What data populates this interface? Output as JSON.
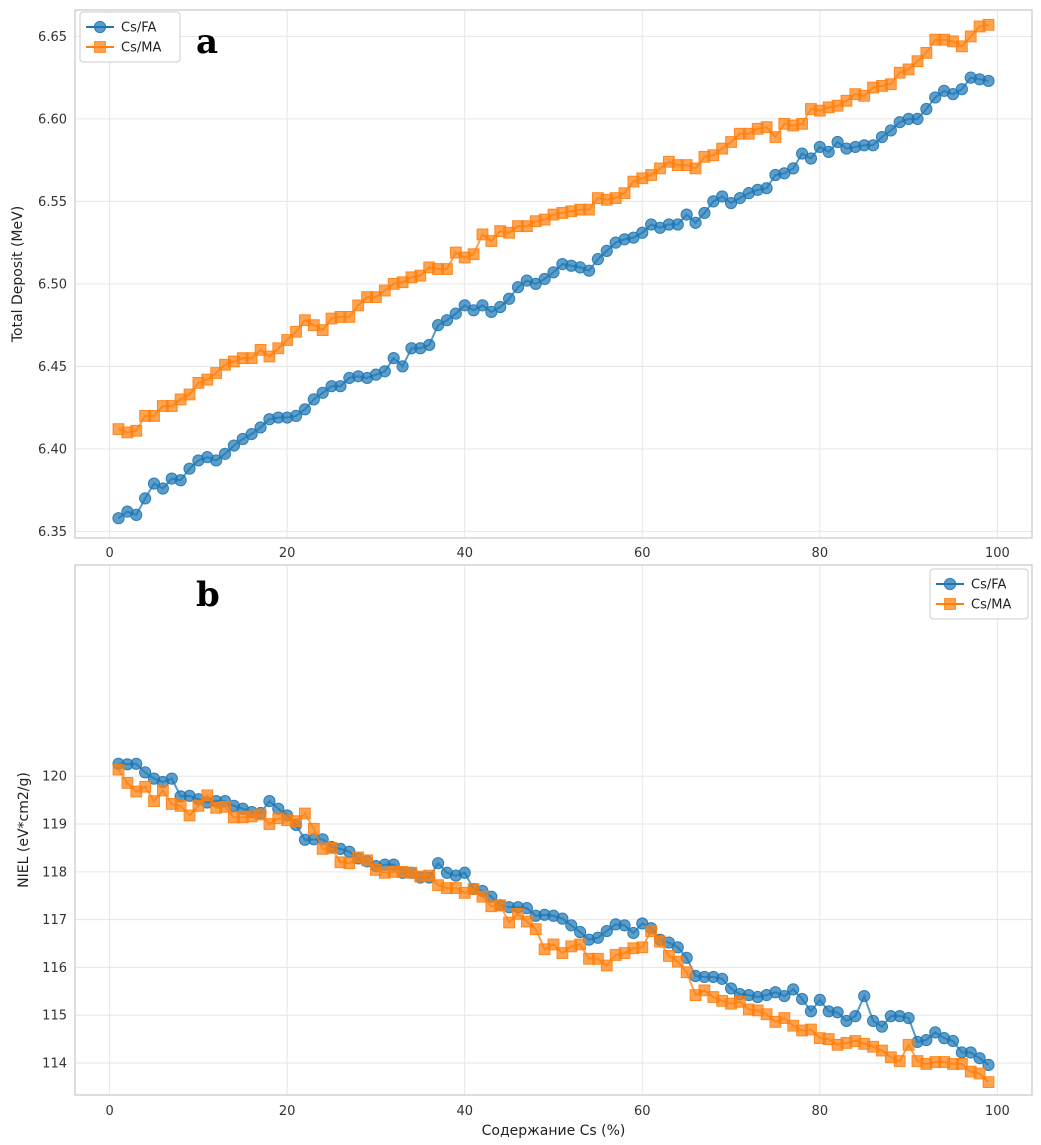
{
  "chart_data": [
    {
      "type": "line",
      "panel_label": "a",
      "title": "",
      "xlabel": "",
      "ylabel": "Total Deposit (MeV)",
      "xlim": [
        -3.9,
        103.9
      ],
      "ylim": [
        6.346,
        6.666
      ],
      "xticks": [
        0,
        20,
        40,
        60,
        80,
        100
      ],
      "yticks": [
        6.35,
        6.4,
        6.45,
        6.5,
        6.55,
        6.6,
        6.65
      ],
      "ytick_labels": [
        "6.35",
        "6.40",
        "6.45",
        "6.50",
        "6.55",
        "6.60",
        "6.65"
      ],
      "grid": true,
      "legend_position": "top-left",
      "x": [
        1,
        2,
        3,
        4,
        5,
        6,
        7,
        8,
        9,
        10,
        11,
        12,
        13,
        14,
        15,
        16,
        17,
        18,
        19,
        20,
        21,
        22,
        23,
        24,
        25,
        26,
        27,
        28,
        29,
        30,
        31,
        32,
        33,
        34,
        35,
        36,
        37,
        38,
        39,
        40,
        41,
        42,
        43,
        44,
        45,
        46,
        47,
        48,
        49,
        50,
        51,
        52,
        53,
        54,
        55,
        56,
        57,
        58,
        59,
        60,
        61,
        62,
        63,
        64,
        65,
        66,
        67,
        68,
        69,
        70,
        71,
        72,
        73,
        74,
        75,
        76,
        77,
        78,
        79,
        80,
        81,
        82,
        83,
        84,
        85,
        86,
        87,
        88,
        89,
        90,
        91,
        92,
        93,
        94,
        95,
        96,
        97,
        98,
        99
      ],
      "series": [
        {
          "name": "Cs/FA",
          "marker": "circle",
          "color": "#1f77b4",
          "values": [
            6.358,
            6.362,
            6.36,
            6.37,
            6.379,
            6.376,
            6.382,
            6.381,
            6.388,
            6.393,
            6.395,
            6.393,
            6.397,
            6.402,
            6.406,
            6.409,
            6.413,
            6.418,
            6.419,
            6.419,
            6.42,
            6.424,
            6.43,
            6.434,
            6.438,
            6.438,
            6.443,
            6.444,
            6.443,
            6.445,
            6.447,
            6.455,
            6.45,
            6.461,
            6.461,
            6.463,
            6.475,
            6.478,
            6.482,
            6.487,
            6.484,
            6.487,
            6.483,
            6.486,
            6.491,
            6.498,
            6.502,
            6.5,
            6.503,
            6.507,
            6.512,
            6.511,
            6.51,
            6.508,
            6.515,
            6.52,
            6.525,
            6.527,
            6.528,
            6.531,
            6.536,
            6.534,
            6.536,
            6.536,
            6.542,
            6.537,
            6.543,
            6.55,
            6.553,
            6.549,
            6.552,
            6.555,
            6.557,
            6.558,
            6.566,
            6.567,
            6.57,
            6.579,
            6.576,
            6.583,
            6.58,
            6.586,
            6.582,
            6.583,
            6.584,
            6.584,
            6.589,
            6.593,
            6.598,
            6.6,
            6.6,
            6.606,
            6.613,
            6.617,
            6.615,
            6.618,
            6.625,
            6.624,
            6.623
          ]
        },
        {
          "name": "Cs/MA",
          "marker": "square",
          "color": "#ff7f0e",
          "values": [
            6.412,
            6.41,
            6.411,
            6.42,
            6.42,
            6.426,
            6.426,
            6.43,
            6.433,
            6.44,
            6.442,
            6.446,
            6.451,
            6.453,
            6.455,
            6.455,
            6.46,
            6.456,
            6.461,
            6.466,
            6.471,
            6.478,
            6.475,
            6.472,
            6.479,
            6.48,
            6.48,
            6.487,
            6.492,
            6.492,
            6.496,
            6.5,
            6.501,
            6.504,
            6.505,
            6.51,
            6.509,
            6.509,
            6.519,
            6.516,
            6.518,
            6.53,
            6.526,
            6.532,
            6.531,
            6.535,
            6.535,
            6.538,
            6.539,
            6.542,
            6.543,
            6.544,
            6.545,
            6.545,
            6.552,
            6.551,
            6.552,
            6.555,
            6.562,
            6.564,
            6.566,
            6.57,
            6.574,
            6.572,
            6.572,
            6.57,
            6.577,
            6.578,
            6.582,
            6.586,
            6.591,
            6.591,
            6.594,
            6.595,
            6.589,
            6.597,
            6.596,
            6.597,
            6.606,
            6.605,
            6.607,
            6.608,
            6.611,
            6.615,
            6.614,
            6.619,
            6.62,
            6.621,
            6.628,
            6.63,
            6.635,
            6.64,
            6.648,
            6.648,
            6.647,
            6.644,
            6.65,
            6.656,
            6.657
          ]
        }
      ]
    },
    {
      "type": "line",
      "panel_label": "b",
      "title": "",
      "xlabel": "Содержание Cs (%)",
      "ylabel": "NIEL (eV*cm2/g)",
      "xlim": [
        -3.9,
        103.9
      ],
      "ylim": [
        113.33,
        124.42
      ],
      "xticks": [
        0,
        20,
        40,
        60,
        80,
        100
      ],
      "yticks": [
        114,
        115,
        116,
        117,
        118,
        119,
        120
      ],
      "ytick_labels": [
        "114",
        "115",
        "116",
        "117",
        "118",
        "119",
        "120"
      ],
      "grid": true,
      "legend_position": "top-right",
      "x": [
        1,
        2,
        3,
        4,
        5,
        6,
        7,
        8,
        9,
        10,
        11,
        12,
        13,
        14,
        15,
        16,
        17,
        18,
        19,
        20,
        21,
        22,
        23,
        24,
        25,
        26,
        27,
        28,
        29,
        30,
        31,
        32,
        33,
        34,
        35,
        36,
        37,
        38,
        39,
        40,
        41,
        42,
        43,
        44,
        45,
        46,
        47,
        48,
        49,
        50,
        51,
        52,
        53,
        54,
        55,
        56,
        57,
        58,
        59,
        60,
        61,
        62,
        63,
        64,
        65,
        66,
        67,
        68,
        69,
        70,
        71,
        72,
        73,
        74,
        75,
        76,
        77,
        78,
        79,
        80,
        81,
        82,
        83,
        84,
        85,
        86,
        87,
        88,
        89,
        90,
        91,
        92,
        93,
        94,
        95,
        96,
        97,
        98,
        99
      ],
      "series": [
        {
          "name": "Cs/FA",
          "marker": "circle",
          "color": "#1f77b4",
          "values": [
            120.26,
            120.25,
            120.26,
            120.08,
            119.95,
            119.88,
            119.95,
            119.58,
            119.59,
            119.52,
            119.45,
            119.48,
            119.48,
            119.38,
            119.32,
            119.25,
            119.23,
            119.48,
            119.32,
            119.18,
            118.98,
            118.67,
            118.68,
            118.68,
            118.52,
            118.48,
            118.42,
            118.28,
            118.22,
            118.12,
            118.15,
            118.15,
            117.98,
            117.98,
            117.88,
            117.88,
            118.18,
            117.98,
            117.92,
            117.98,
            117.64,
            117.6,
            117.48,
            117.3,
            117.26,
            117.26,
            117.24,
            117.08,
            117.1,
            117.08,
            117.02,
            116.88,
            116.74,
            116.58,
            116.62,
            116.76,
            116.9,
            116.88,
            116.72,
            116.92,
            116.82,
            116.58,
            116.52,
            116.42,
            116.2,
            115.82,
            115.8,
            115.8,
            115.76,
            115.56,
            115.44,
            115.42,
            115.38,
            115.42,
            115.48,
            115.4,
            115.54,
            115.34,
            115.08,
            115.32,
            115.08,
            115.06,
            114.88,
            114.98,
            115.4,
            114.88,
            114.76,
            114.98,
            114.98,
            114.94,
            114.44,
            114.48,
            114.64,
            114.52,
            114.46,
            114.22,
            114.22,
            114.1,
            113.96
          ]
        },
        {
          "name": "Cs/MA",
          "marker": "square",
          "color": "#ff7f0e",
          "values": [
            120.14,
            119.86,
            119.68,
            119.78,
            119.48,
            119.7,
            119.42,
            119.38,
            119.18,
            119.38,
            119.6,
            119.34,
            119.36,
            119.14,
            119.14,
            119.16,
            119.2,
            119.0,
            119.12,
            119.08,
            119.06,
            119.22,
            118.9,
            118.48,
            118.5,
            118.2,
            118.18,
            118.3,
            118.24,
            118.04,
            117.98,
            118.0,
            118.0,
            117.98,
            117.9,
            117.92,
            117.72,
            117.66,
            117.66,
            117.56,
            117.64,
            117.48,
            117.28,
            117.3,
            116.94,
            117.12,
            116.96,
            116.8,
            116.38,
            116.48,
            116.3,
            116.44,
            116.48,
            116.18,
            116.18,
            116.04,
            116.26,
            116.3,
            116.4,
            116.42,
            116.76,
            116.54,
            116.24,
            116.12,
            115.9,
            115.42,
            115.52,
            115.38,
            115.3,
            115.24,
            115.28,
            115.12,
            115.1,
            115.02,
            114.86,
            114.94,
            114.78,
            114.68,
            114.7,
            114.52,
            114.5,
            114.38,
            114.42,
            114.46,
            114.4,
            114.34,
            114.26,
            114.12,
            114.04,
            114.38,
            114.04,
            113.98,
            114.02,
            114.02,
            113.98,
            113.98,
            113.82,
            113.78,
            113.6
          ]
        }
      ]
    }
  ]
}
